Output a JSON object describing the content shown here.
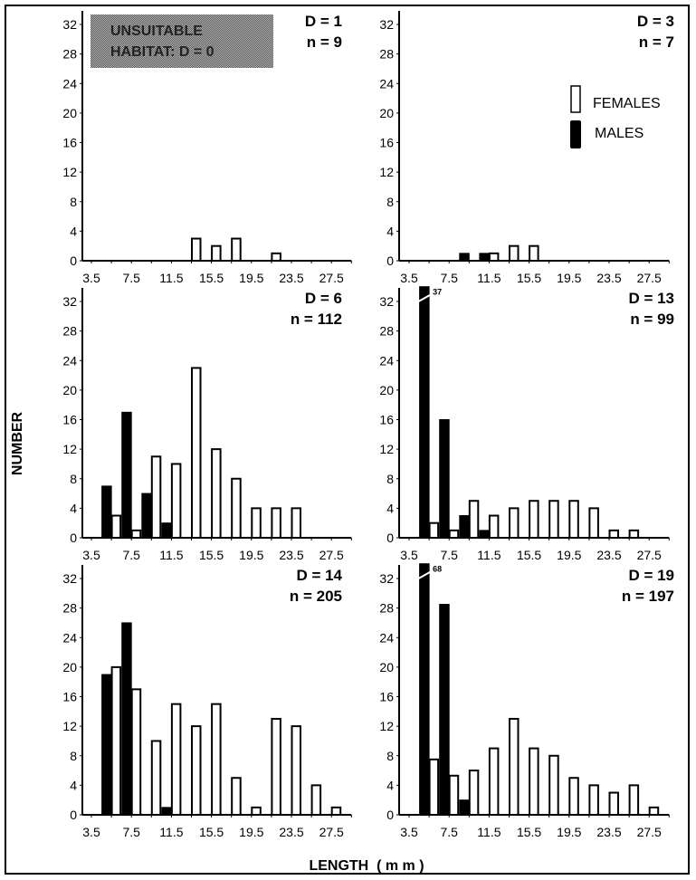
{
  "chart_data": {
    "type": "bar",
    "xlabel": "LENGTH  ( m m )",
    "ylabel": "NUMBER",
    "x_tick_labels": [
      "3.5",
      "7.5",
      "11.5",
      "15.5",
      "19.5",
      "23.5",
      "27.5"
    ],
    "y_tick_labels": [
      "0",
      "4",
      "8",
      "12",
      "16",
      "20",
      "24",
      "28",
      "32"
    ],
    "ylim": [
      0,
      32
    ],
    "xlim": [
      3.5,
      29.5
    ],
    "grid": false,
    "legend": {
      "position": "top-right panel, right side",
      "entries": [
        {
          "name": "FEMALES",
          "fill": "#ffffff"
        },
        {
          "name": "MALES",
          "fill": "#000000"
        }
      ]
    },
    "annotation": {
      "text_lines": [
        "UNSUITABLE",
        "HABITAT: D = 0"
      ],
      "panel": 0
    },
    "panels": [
      {
        "title_lines": [
          "D = 1",
          "n = 9"
        ],
        "x": [
          5.5,
          7.5,
          9.5,
          11.5,
          13.5,
          15.5,
          17.5,
          19.5,
          21.5,
          23.5,
          25.5,
          27.5
        ],
        "series": [
          {
            "name": "MALES",
            "values": [
              0,
              0,
              0,
              0,
              0,
              0,
              0,
              0,
              0,
              0,
              0,
              0
            ]
          },
          {
            "name": "FEMALES",
            "values": [
              0,
              0,
              0,
              0,
              3,
              2,
              3,
              0,
              1,
              0,
              0,
              0
            ]
          }
        ]
      },
      {
        "title_lines": [
          "D = 3",
          "n = 7"
        ],
        "x": [
          5.5,
          7.5,
          9.5,
          11.5,
          13.5,
          15.5,
          17.5,
          19.5,
          21.5,
          23.5,
          25.5,
          27.5
        ],
        "series": [
          {
            "name": "MALES",
            "values": [
              0,
              0,
              1,
              1,
              0,
              0,
              0,
              0,
              0,
              0,
              0,
              0
            ]
          },
          {
            "name": "FEMALES",
            "values": [
              0,
              0,
              0,
              1,
              2,
              2,
              0,
              0,
              0,
              0,
              0,
              0
            ]
          }
        ]
      },
      {
        "title_lines": [
          "D = 6",
          "n = 112"
        ],
        "x": [
          5.5,
          7.5,
          9.5,
          11.5,
          13.5,
          15.5,
          17.5,
          19.5,
          21.5,
          23.5,
          25.5,
          27.5
        ],
        "series": [
          {
            "name": "MALES",
            "values": [
              7,
              17,
              6,
              2,
              0,
              0,
              0,
              0,
              0,
              0,
              0,
              0
            ]
          },
          {
            "name": "FEMALES",
            "values": [
              3,
              1,
              11,
              10,
              23,
              12,
              8,
              4,
              4,
              4,
              0,
              0
            ]
          }
        ]
      },
      {
        "title_lines": [
          "D = 13",
          "n = 99"
        ],
        "x": [
          5.5,
          7.5,
          9.5,
          11.5,
          13.5,
          15.5,
          17.5,
          19.5,
          21.5,
          23.5,
          25.5,
          27.5
        ],
        "truncated": [
          {
            "series": "MALES",
            "x": 5.5,
            "label": "37"
          }
        ],
        "series": [
          {
            "name": "MALES",
            "values": [
              37,
              16,
              3,
              1,
              0,
              0,
              0,
              0,
              0,
              0,
              0,
              0
            ]
          },
          {
            "name": "FEMALES",
            "values": [
              2,
              1,
              5,
              3,
              4,
              5,
              5,
              5,
              4,
              1,
              1,
              0
            ]
          }
        ]
      },
      {
        "title_lines": [
          "D = 14",
          "n = 205"
        ],
        "x": [
          5.5,
          7.5,
          9.5,
          11.5,
          13.5,
          15.5,
          17.5,
          19.5,
          21.5,
          23.5,
          25.5,
          27.5
        ],
        "series": [
          {
            "name": "MALES",
            "values": [
              19,
              26,
              0,
              1,
              0,
              0,
              0,
              0,
              0,
              0,
              0,
              0
            ]
          },
          {
            "name": "FEMALES",
            "values": [
              20,
              17,
              10,
              15,
              12,
              15,
              5,
              1,
              13,
              12,
              4,
              1
            ]
          }
        ]
      },
      {
        "title_lines": [
          "D = 19",
          "n = 197"
        ],
        "x": [
          5.5,
          7.5,
          9.5,
          11.5,
          13.5,
          15.5,
          17.5,
          19.5,
          21.5,
          23.5,
          25.5,
          27.5
        ],
        "truncated": [
          {
            "series": "MALES",
            "x": 5.5,
            "label": "68"
          }
        ],
        "series": [
          {
            "name": "MALES",
            "values": [
              68,
              28.5,
              2,
              0,
              0,
              0,
              0,
              0,
              0,
              0,
              0,
              0
            ]
          },
          {
            "name": "FEMALES",
            "values": [
              7.5,
              5.3,
              6,
              9,
              13,
              9,
              8,
              5,
              4,
              3,
              4,
              1
            ]
          }
        ]
      }
    ]
  },
  "colors": {
    "male_fill": "#000000",
    "female_fill": "#ffffff",
    "outline": "#000000",
    "annotation_bg": "#8a8a8a"
  }
}
